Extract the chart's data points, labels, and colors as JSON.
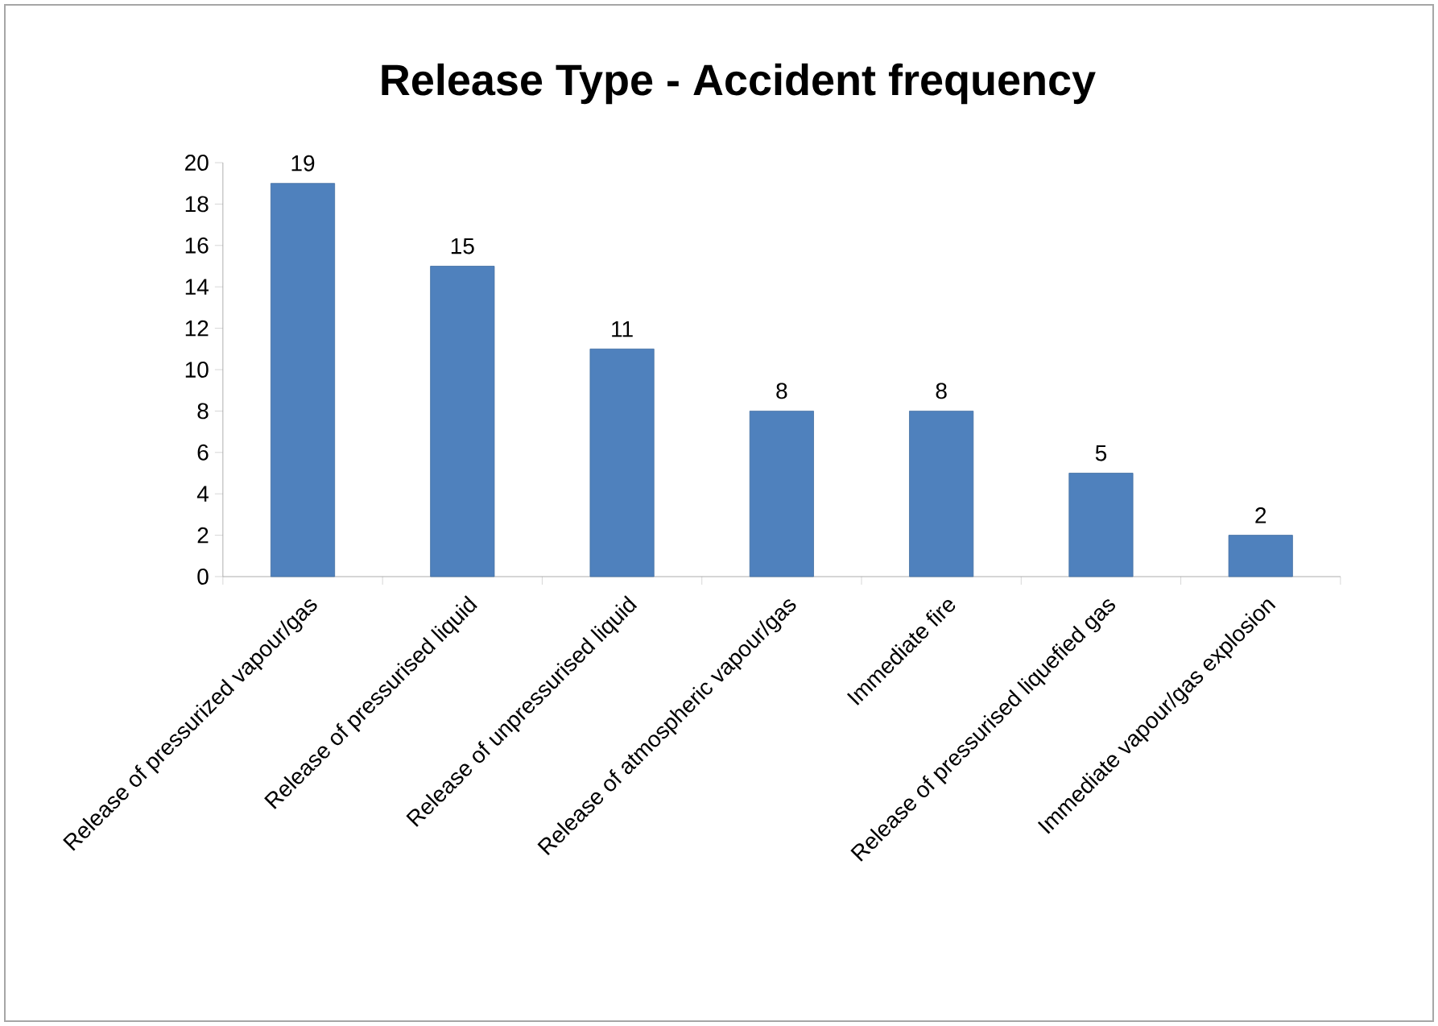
{
  "chart_data": {
    "type": "bar",
    "title": "Release Type - Accident frequency",
    "categories": [
      "Release of pressurized vapour/gas",
      "Release of pressurised liquid",
      "Release of unpressurised liquid",
      "Release of atmospheric vapour/gas",
      "Immediate fire",
      "Release of pressurised liquefied gas",
      "Immediate vapour/gas explosion"
    ],
    "values": [
      19,
      15,
      11,
      8,
      8,
      5,
      2
    ],
    "color": "#4f81bd",
    "ylim": [
      0,
      20
    ],
    "yticks": [
      0,
      2,
      4,
      6,
      8,
      10,
      12,
      14,
      16,
      18,
      20
    ],
    "data_labels": true
  }
}
